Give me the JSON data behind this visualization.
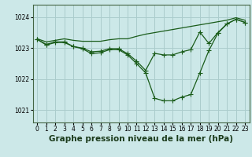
{
  "title": "Graphe pression niveau de la mer (hPa)",
  "bg_color": "#cce8e8",
  "grid_color": "#aacccc",
  "line_color": "#1a5c1a",
  "xlim": [
    -0.5,
    23.5
  ],
  "ylim": [
    1020.6,
    1024.4
  ],
  "yticks": [
    1021,
    1022,
    1023,
    1024
  ],
  "xticks": [
    0,
    1,
    2,
    3,
    4,
    5,
    6,
    7,
    8,
    9,
    10,
    11,
    12,
    13,
    14,
    15,
    16,
    17,
    18,
    19,
    20,
    21,
    22,
    23
  ],
  "top_line": [
    1023.3,
    1023.2,
    1023.25,
    1023.3,
    1023.25,
    1023.22,
    1023.22,
    1023.22,
    1023.27,
    1023.3,
    1023.3,
    1023.38,
    1023.45,
    1023.5,
    1023.55,
    1023.6,
    1023.65,
    1023.7,
    1023.75,
    1023.8,
    1023.85,
    1023.9,
    1023.98,
    1023.9
  ],
  "mid_line": [
    1023.28,
    1023.12,
    1023.2,
    1023.2,
    1023.05,
    1023.0,
    1022.88,
    1022.9,
    1022.98,
    1022.98,
    1022.82,
    1022.58,
    1022.28,
    1022.83,
    1022.78,
    1022.78,
    1022.88,
    1022.95,
    1023.52,
    1023.15,
    1023.5,
    1023.78,
    1023.93,
    1023.83
  ],
  "bot_line": [
    1023.28,
    1023.1,
    1023.18,
    1023.18,
    1023.05,
    1022.98,
    1022.82,
    1022.85,
    1022.95,
    1022.95,
    1022.78,
    1022.5,
    1022.2,
    1021.38,
    1021.3,
    1021.3,
    1021.42,
    1021.5,
    1022.2,
    1022.92,
    1023.48,
    1023.78,
    1023.93,
    1023.83
  ],
  "marker_style": "+",
  "marker_size": 4.0,
  "linewidth": 0.9,
  "tick_fontsize": 5.5,
  "title_fontsize": 7.5
}
